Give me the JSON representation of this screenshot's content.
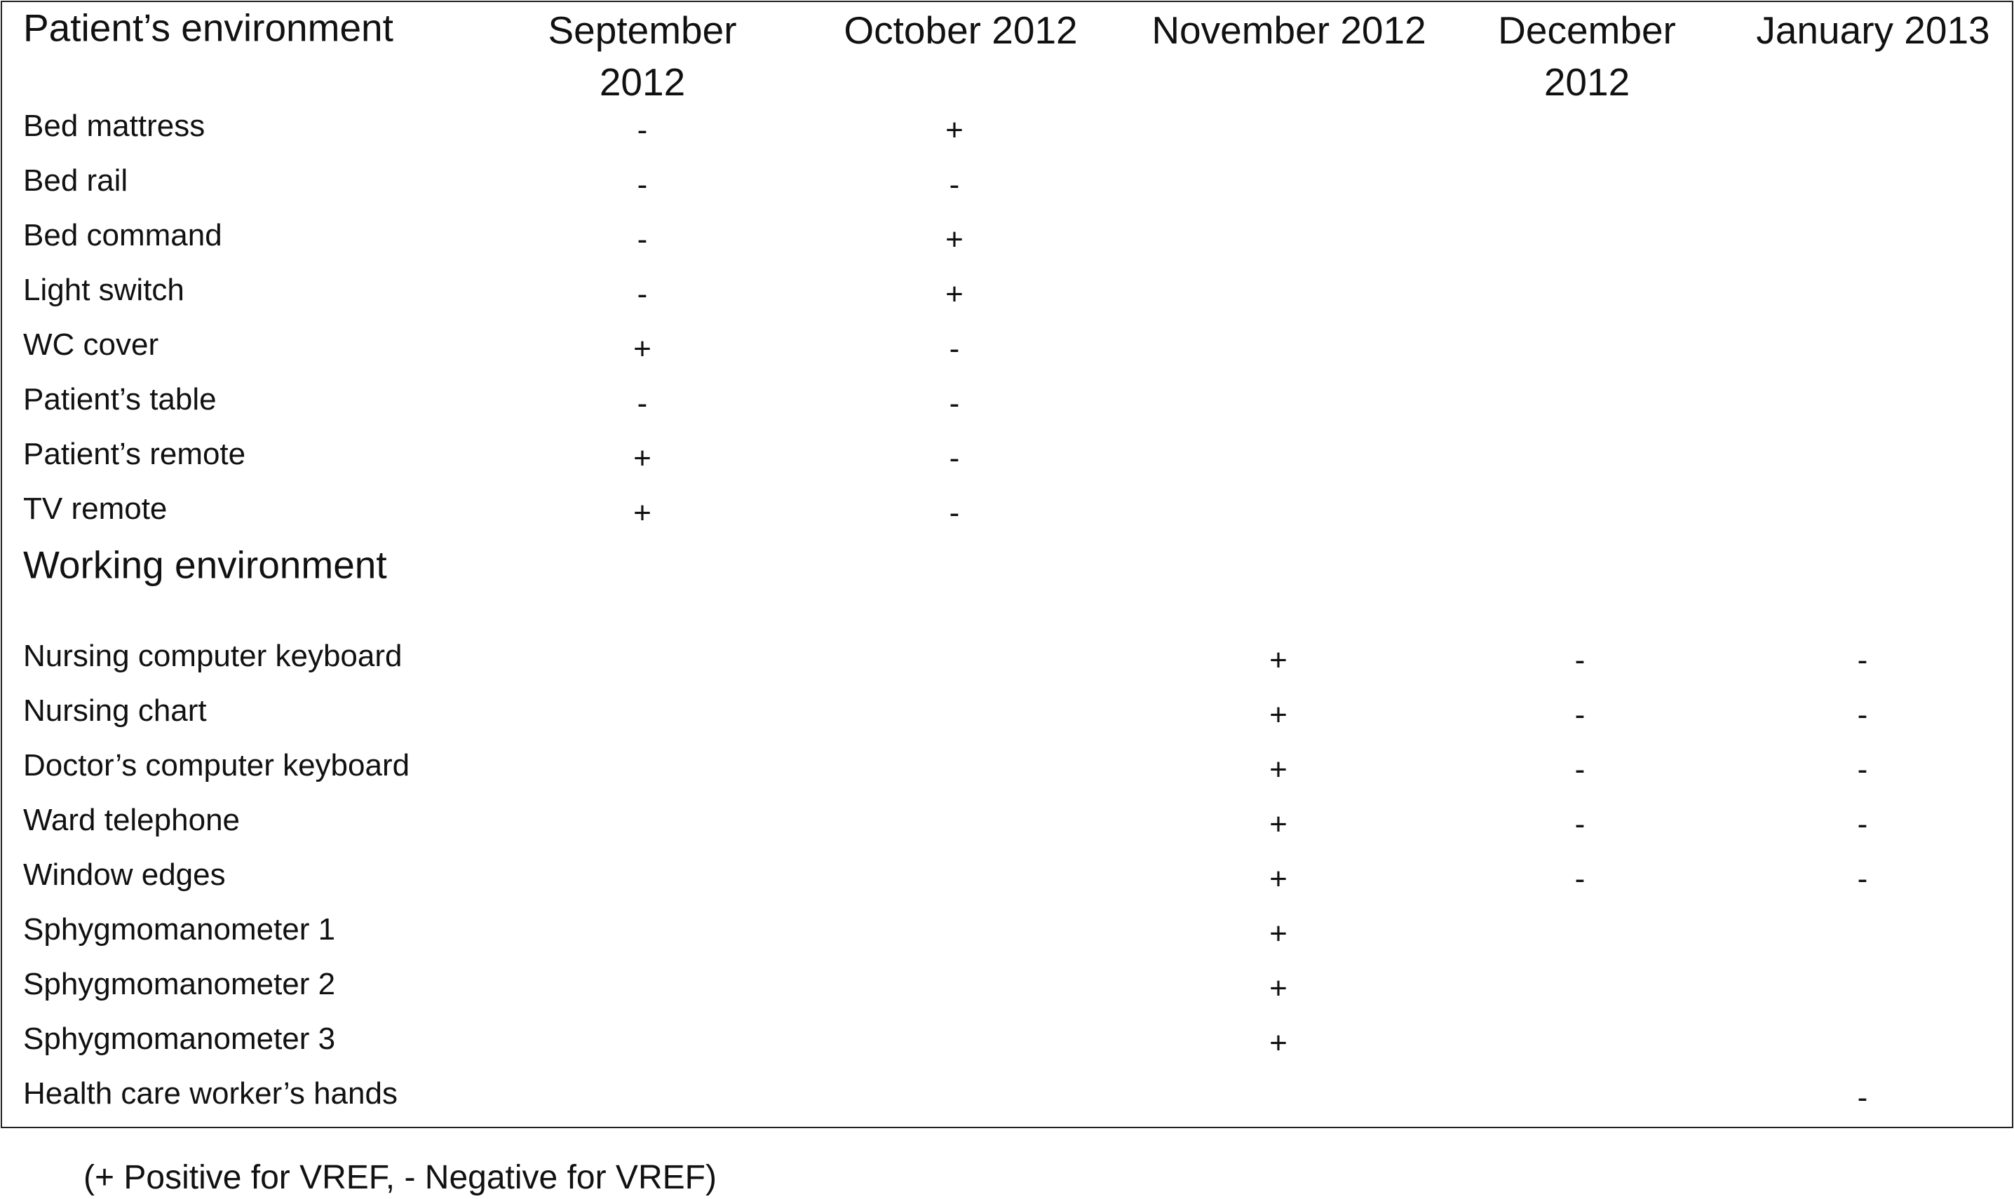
{
  "table": {
    "header": [
      "Patient’s environment",
      "September 2012",
      "October 2012",
      "November 2012",
      "December 2012",
      "January 2013"
    ],
    "sections": [
      {
        "rows": [
          {
            "label": "Bed mattress",
            "cells": [
              "-",
              "+",
              null,
              null,
              null
            ]
          },
          {
            "label": "Bed rail",
            "cells": [
              "-",
              "-",
              null,
              null,
              null
            ]
          },
          {
            "label": "Bed command",
            "cells": [
              "-",
              "+",
              null,
              null,
              null
            ]
          },
          {
            "label": "Light switch",
            "cells": [
              "-",
              "+",
              null,
              null,
              null
            ]
          },
          {
            "label": "WC cover",
            "cells": [
              "+",
              "-",
              null,
              null,
              null
            ]
          },
          {
            "label": "Patient’s table",
            "cells": [
              "-",
              "-",
              null,
              null,
              null
            ]
          },
          {
            "label": "Patient’s remote",
            "cells": [
              "+",
              "-",
              null,
              null,
              null
            ]
          },
          {
            "label": "TV remote",
            "cells": [
              "+",
              "-",
              null,
              null,
              null
            ]
          }
        ]
      },
      {
        "title": "Working environment",
        "rows": [
          {
            "label": "Nursing computer keyboard",
            "cells": [
              null,
              null,
              "+",
              "-",
              "-"
            ]
          },
          {
            "label": "Nursing chart",
            "cells": [
              null,
              null,
              "+",
              "-",
              "-"
            ]
          },
          {
            "label": "Doctor’s computer keyboard",
            "cells": [
              null,
              null,
              "+",
              "-",
              "-"
            ]
          },
          {
            "label": "Ward telephone",
            "cells": [
              null,
              null,
              "+",
              "-",
              "-"
            ]
          },
          {
            "label": "Window edges",
            "cells": [
              null,
              null,
              "+",
              "-",
              "-"
            ]
          },
          {
            "label": "Sphygmomanometer 1",
            "cells": [
              null,
              null,
              "+",
              null,
              null
            ]
          },
          {
            "label": "Sphygmomanometer 2",
            "cells": [
              null,
              null,
              "+",
              null,
              null
            ]
          },
          {
            "label": "Sphygmomanometer 3",
            "cells": [
              null,
              null,
              "+",
              null,
              null
            ]
          },
          {
            "label": "Health care worker’s hands",
            "cells": [
              null,
              null,
              null,
              null,
              "-"
            ]
          }
        ]
      }
    ]
  },
  "footnote": "(+ Positive for VREF, - Negative for VREF)"
}
